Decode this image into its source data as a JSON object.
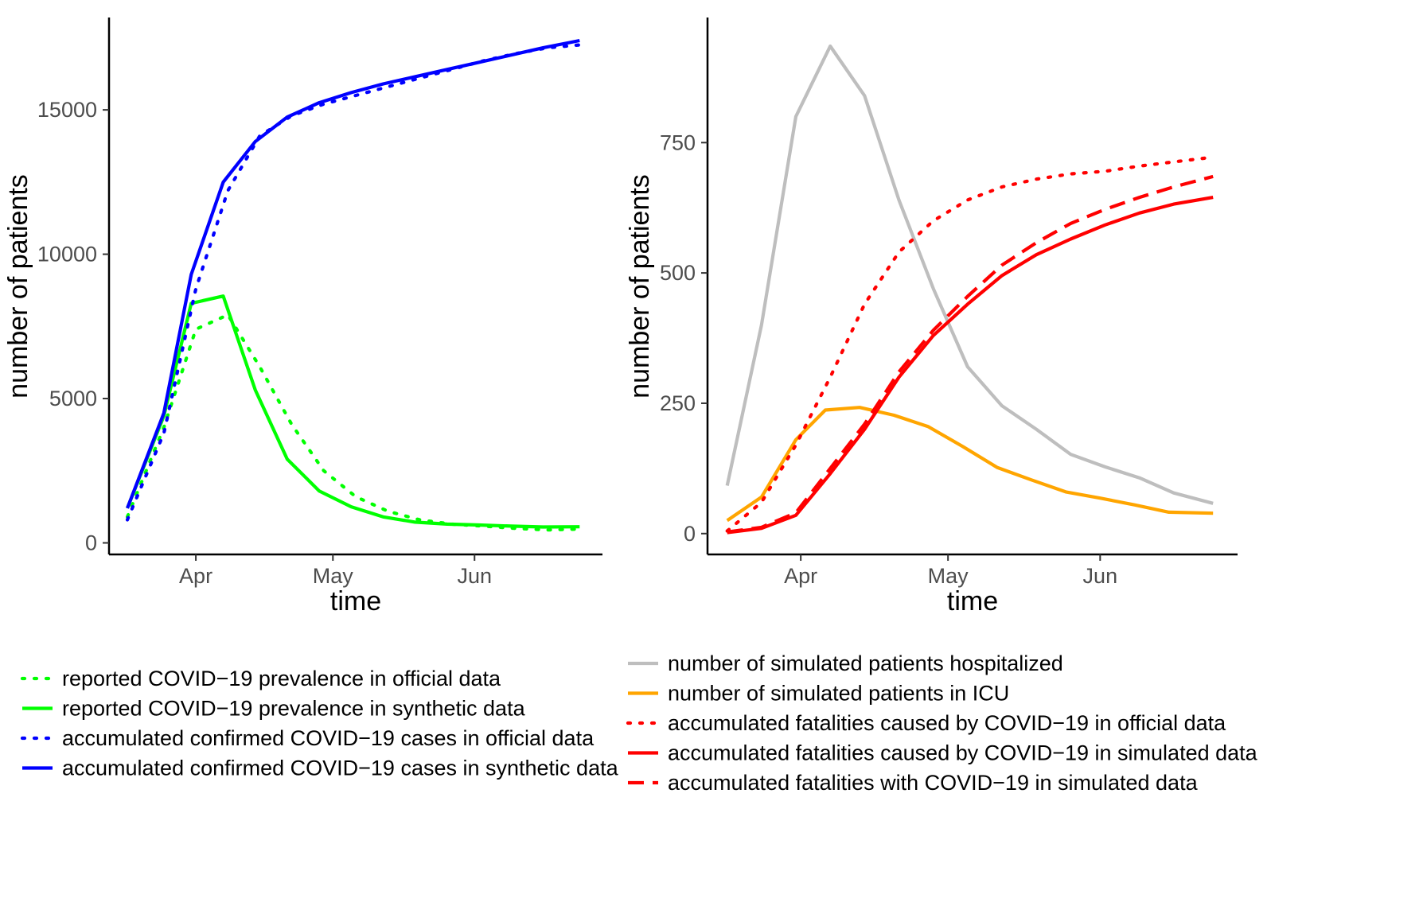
{
  "chart_data": [
    {
      "type": "line",
      "title": "",
      "xlabel": "time",
      "ylabel": "number of patients",
      "xlim": [
        -19,
        89
      ],
      "ylim": [
        -400,
        18200
      ],
      "x_axis": {
        "type": "date",
        "ticks": [
          {
            "label": "Apr",
            "date": "2020-04-01"
          },
          {
            "label": "May",
            "date": "2020-05-01"
          },
          {
            "label": "Jun",
            "date": "2020-06-01"
          }
        ]
      },
      "y_axis": {
        "ticks": [
          {
            "label": "0",
            "value": 0
          },
          {
            "label": "5000",
            "value": 5000
          },
          {
            "label": "10000",
            "value": 10000
          },
          {
            "label": "15000",
            "value": 15000
          }
        ]
      },
      "grid": false,
      "legend_position": "bottom",
      "series": [
        {
          "name": "reported COVID−19 prevalence in official data",
          "color": "#00ff00",
          "dash": "dotted",
          "points": [
            [
              "2020-03-17",
              900
            ],
            [
              "2020-03-25",
              4000
            ],
            [
              "2020-04-01",
              7400
            ],
            [
              "2020-04-08",
              7900
            ],
            [
              "2020-04-15",
              6100
            ],
            [
              "2020-04-22",
              4100
            ],
            [
              "2020-04-29",
              2500
            ],
            [
              "2020-05-06",
              1600
            ],
            [
              "2020-05-13",
              1100
            ],
            [
              "2020-05-20",
              800
            ],
            [
              "2020-05-27",
              650
            ],
            [
              "2020-06-03",
              580
            ],
            [
              "2020-06-10",
              500
            ],
            [
              "2020-06-17",
              450
            ],
            [
              "2020-06-24",
              480
            ]
          ]
        },
        {
          "name": "reported COVID−19 prevalence in synthetic data",
          "color": "#00ff00",
          "dash": "solid",
          "points": [
            [
              "2020-03-17",
              1200
            ],
            [
              "2020-03-25",
              4400
            ],
            [
              "2020-03-31",
              8300
            ],
            [
              "2020-04-07",
              8550
            ],
            [
              "2020-04-14",
              5300
            ],
            [
              "2020-04-21",
              2900
            ],
            [
              "2020-04-28",
              1800
            ],
            [
              "2020-05-05",
              1250
            ],
            [
              "2020-05-12",
              900
            ],
            [
              "2020-05-19",
              720
            ],
            [
              "2020-05-26",
              650
            ],
            [
              "2020-06-02",
              620
            ],
            [
              "2020-06-09",
              580
            ],
            [
              "2020-06-16",
              550
            ],
            [
              "2020-06-24",
              560
            ]
          ]
        },
        {
          "name": "accumulated confirmed COVID−19 cases in official data",
          "color": "#0000ff",
          "dash": "dotted",
          "points": [
            [
              "2020-03-17",
              800
            ],
            [
              "2020-03-25",
              3800
            ],
            [
              "2020-04-01",
              8800
            ],
            [
              "2020-04-08",
              12200
            ],
            [
              "2020-04-15",
              14100
            ],
            [
              "2020-04-22",
              14800
            ],
            [
              "2020-04-29",
              15200
            ],
            [
              "2020-05-06",
              15500
            ],
            [
              "2020-05-13",
              15800
            ],
            [
              "2020-05-20",
              16100
            ],
            [
              "2020-05-27",
              16400
            ],
            [
              "2020-06-03",
              16700
            ],
            [
              "2020-06-10",
              16950
            ],
            [
              "2020-06-17",
              17150
            ],
            [
              "2020-06-24",
              17250
            ]
          ]
        },
        {
          "name": "accumulated confirmed COVID−19 cases in synthetic data",
          "color": "#0000ff",
          "dash": "solid",
          "points": [
            [
              "2020-03-17",
              1200
            ],
            [
              "2020-03-25",
              4500
            ],
            [
              "2020-03-31",
              9300
            ],
            [
              "2020-04-07",
              12500
            ],
            [
              "2020-04-14",
              13900
            ],
            [
              "2020-04-21",
              14750
            ],
            [
              "2020-04-28",
              15250
            ],
            [
              "2020-05-05",
              15600
            ],
            [
              "2020-05-12",
              15900
            ],
            [
              "2020-05-19",
              16150
            ],
            [
              "2020-05-26",
              16400
            ],
            [
              "2020-06-02",
              16650
            ],
            [
              "2020-06-09",
              16900
            ],
            [
              "2020-06-16",
              17150
            ],
            [
              "2020-06-24",
              17400
            ]
          ]
        }
      ]
    },
    {
      "type": "line",
      "title": "",
      "xlabel": "time",
      "ylabel": "number of patients",
      "xlim": [
        -19,
        89
      ],
      "ylim": [
        -40,
        990
      ],
      "x_axis": {
        "type": "date",
        "ticks": [
          {
            "label": "Apr",
            "date": "2020-04-01"
          },
          {
            "label": "May",
            "date": "2020-05-01"
          },
          {
            "label": "Jun",
            "date": "2020-06-01"
          }
        ]
      },
      "y_axis": {
        "ticks": [
          {
            "label": "0",
            "value": 0
          },
          {
            "label": "250",
            "value": 250
          },
          {
            "label": "500",
            "value": 500
          },
          {
            "label": "750",
            "value": 750
          }
        ]
      },
      "grid": false,
      "legend_position": "bottom",
      "series": [
        {
          "name": "number of simulated patients hospitalized",
          "color": "#bebebe",
          "dash": "solid",
          "points": [
            [
              "2020-03-17",
              92
            ],
            [
              "2020-03-24",
              400
            ],
            [
              "2020-03-31",
              800
            ],
            [
              "2020-04-07",
              935
            ],
            [
              "2020-04-14",
              840
            ],
            [
              "2020-04-21",
              640
            ],
            [
              "2020-04-28",
              470
            ],
            [
              "2020-05-05",
              320
            ],
            [
              "2020-05-12",
              245
            ],
            [
              "2020-05-19",
              200
            ],
            [
              "2020-05-26",
              152
            ],
            [
              "2020-06-02",
              128
            ],
            [
              "2020-06-09",
              107
            ],
            [
              "2020-06-16",
              78
            ],
            [
              "2020-06-24",
              58
            ]
          ]
        },
        {
          "name": "number of simulated patients in ICU",
          "color": "#ffa500",
          "dash": "solid",
          "points": [
            [
              "2020-03-17",
              25
            ],
            [
              "2020-03-24",
              70
            ],
            [
              "2020-03-31",
              180
            ],
            [
              "2020-04-06",
              237
            ],
            [
              "2020-04-13",
              242
            ],
            [
              "2020-04-20",
              227
            ],
            [
              "2020-04-27",
              205
            ],
            [
              "2020-05-04",
              167
            ],
            [
              "2020-05-11",
              127
            ],
            [
              "2020-05-18",
              103
            ],
            [
              "2020-05-25",
              80
            ],
            [
              "2020-06-01",
              68
            ],
            [
              "2020-06-08",
              55
            ],
            [
              "2020-06-15",
              41
            ],
            [
              "2020-06-24",
              39
            ]
          ]
        },
        {
          "name": "accumulated fatalities caused by COVID−19 in official data",
          "color": "#ff0000",
          "dash": "dotted",
          "points": [
            [
              "2020-03-17",
              5
            ],
            [
              "2020-03-24",
              60
            ],
            [
              "2020-03-31",
              170
            ],
            [
              "2020-04-07",
              300
            ],
            [
              "2020-04-14",
              440
            ],
            [
              "2020-04-21",
              540
            ],
            [
              "2020-04-28",
              600
            ],
            [
              "2020-05-05",
              640
            ],
            [
              "2020-05-12",
              665
            ],
            [
              "2020-05-19",
              680
            ],
            [
              "2020-05-26",
              690
            ],
            [
              "2020-06-02",
              695
            ],
            [
              "2020-06-09",
              705
            ],
            [
              "2020-06-16",
              713
            ],
            [
              "2020-06-24",
              722
            ]
          ]
        },
        {
          "name": "accumulated fatalities caused by COVID−19 in simulated data",
          "color": "#ff0000",
          "dash": "solid",
          "points": [
            [
              "2020-03-17",
              2
            ],
            [
              "2020-03-24",
              10
            ],
            [
              "2020-03-31",
              35
            ],
            [
              "2020-04-07",
              115
            ],
            [
              "2020-04-14",
              200
            ],
            [
              "2020-04-21",
              300
            ],
            [
              "2020-04-28",
              380
            ],
            [
              "2020-05-05",
              440
            ],
            [
              "2020-05-12",
              495
            ],
            [
              "2020-05-19",
              535
            ],
            [
              "2020-05-26",
              565
            ],
            [
              "2020-06-02",
              592
            ],
            [
              "2020-06-09",
              615
            ],
            [
              "2020-06-16",
              632
            ],
            [
              "2020-06-24",
              645
            ]
          ]
        },
        {
          "name": "accumulated fatalities with COVID−19 in simulated data",
          "color": "#ff0000",
          "dash": "dashed",
          "points": [
            [
              "2020-03-17",
              3
            ],
            [
              "2020-03-24",
              12
            ],
            [
              "2020-03-31",
              40
            ],
            [
              "2020-04-07",
              125
            ],
            [
              "2020-04-14",
              210
            ],
            [
              "2020-04-21",
              310
            ],
            [
              "2020-04-28",
              390
            ],
            [
              "2020-05-05",
              455
            ],
            [
              "2020-05-12",
              515
            ],
            [
              "2020-05-19",
              558
            ],
            [
              "2020-05-26",
              595
            ],
            [
              "2020-06-02",
              622
            ],
            [
              "2020-06-09",
              645
            ],
            [
              "2020-06-16",
              665
            ],
            [
              "2020-06-24",
              685
            ]
          ]
        }
      ]
    }
  ]
}
